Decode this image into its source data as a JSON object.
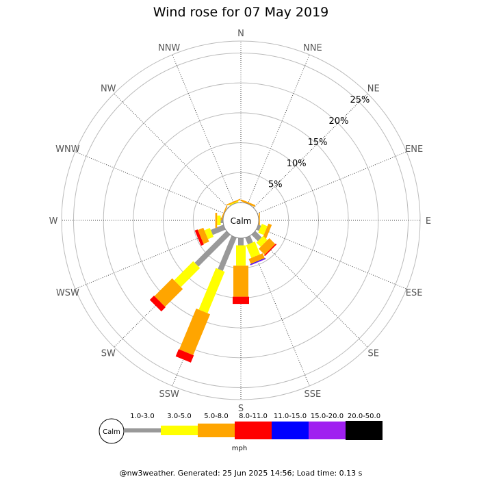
{
  "chart_data": {
    "type": "wind-rose",
    "title": "Wind rose for 07 May 2019",
    "directions": [
      "N",
      "NNE",
      "NE",
      "ENE",
      "E",
      "ESE",
      "SE",
      "SSE",
      "S",
      "SSW",
      "SW",
      "WSW",
      "W",
      "WNW",
      "NW",
      "NNW"
    ],
    "ring_labels": [
      "5%",
      "10%",
      "15%",
      "20%",
      "25%"
    ],
    "ring_values": [
      5,
      10,
      15,
      20,
      25
    ],
    "rmax": 27,
    "calm_label": "Calm",
    "unit": "mph",
    "speed_bins": [
      {
        "label": "1.0-3.0",
        "color": "#999999"
      },
      {
        "label": "3.0-5.0",
        "color": "#ffff00"
      },
      {
        "label": "5.0-8.0",
        "color": "#ffa500"
      },
      {
        "label": "8.0-11.0",
        "color": "#ff0000"
      },
      {
        "label": "11.0-15.0",
        "color": "#0000ff"
      },
      {
        "label": "15.0-20.0",
        "color": "#a020f0"
      },
      {
        "label": "20.0-50.0",
        "color": "#000000"
      }
    ],
    "series": [
      {
        "direction": "N",
        "values": [
          0,
          0,
          0,
          0,
          0,
          0,
          0
        ]
      },
      {
        "direction": "NNE",
        "values": [
          0,
          0,
          0.3,
          0,
          0,
          0,
          0
        ]
      },
      {
        "direction": "NE",
        "values": [
          0,
          0,
          0,
          0,
          0,
          0,
          0
        ]
      },
      {
        "direction": "ENE",
        "values": [
          0,
          0,
          0,
          0,
          0,
          0,
          0
        ]
      },
      {
        "direction": "E",
        "values": [
          0,
          0,
          0.2,
          0,
          0,
          0,
          0
        ]
      },
      {
        "direction": "ESE",
        "values": [
          0.5,
          1.0,
          0.6,
          0,
          0,
          0,
          0
        ]
      },
      {
        "direction": "SE",
        "values": [
          1.5,
          1.0,
          1.4,
          0.2,
          0,
          0,
          0
        ]
      },
      {
        "direction": "SSE",
        "values": [
          1.2,
          2.3,
          0.9,
          0,
          0.1,
          0.1,
          0
        ]
      },
      {
        "direction": "S",
        "values": [
          1.2,
          3.4,
          5.2,
          1.2,
          0,
          0,
          0
        ]
      },
      {
        "direction": "SSW",
        "values": [
          6.0,
          7.5,
          7.4,
          1.3,
          0,
          0,
          0
        ]
      },
      {
        "direction": "SW",
        "values": [
          7.5,
          4.5,
          4.2,
          1.0,
          0,
          0,
          0
        ]
      },
      {
        "direction": "WSW",
        "values": [
          2.3,
          1.0,
          1.0,
          0.5,
          0,
          0,
          0
        ]
      },
      {
        "direction": "W",
        "values": [
          0.4,
          0.6,
          0.3,
          0,
          0,
          0,
          0
        ]
      },
      {
        "direction": "WNW",
        "values": [
          0,
          0,
          0.2,
          0,
          0,
          0,
          0
        ]
      },
      {
        "direction": "NW",
        "values": [
          0,
          0,
          0,
          0,
          0,
          0,
          0
        ]
      },
      {
        "direction": "NNW",
        "values": [
          0,
          0.2,
          0.2,
          0,
          0,
          0,
          0
        ]
      }
    ]
  },
  "footer": "@nw3weather. Generated: 25 Jun 2025 14:56; Load time: 0.13 s"
}
